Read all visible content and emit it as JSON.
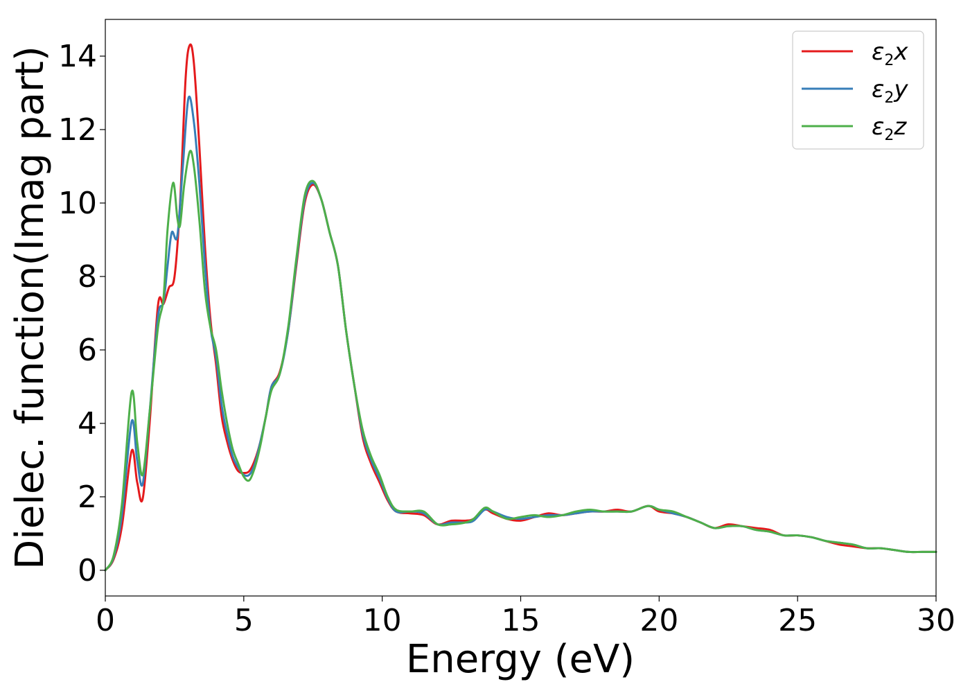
{
  "chart_data": {
    "type": "line",
    "xlabel": "Energy (eV)",
    "ylabel": "Dielec. function(Imag part)",
    "xlim": [
      0,
      30
    ],
    "ylim": [
      -0.7,
      15
    ],
    "xticks": [
      0,
      5,
      10,
      15,
      20,
      25,
      30
    ],
    "xtick_labels": [
      "0",
      "5",
      "10",
      "15",
      "20",
      "25",
      "30"
    ],
    "yticks": [
      0,
      2,
      4,
      6,
      8,
      10,
      12,
      14
    ],
    "ytick_labels": [
      "0",
      "2",
      "4",
      "6",
      "8",
      "10",
      "12",
      "14"
    ],
    "grid": false,
    "legend_position": "top-right",
    "series": [
      {
        "name": "ε2x",
        "legend_base": "ε",
        "legend_sub": "2",
        "legend_tail": "x",
        "color": "#e41a1c",
        "points": [
          [
            0,
            0
          ],
          [
            0.3,
            0.3
          ],
          [
            0.6,
            1.2
          ],
          [
            0.95,
            3.25
          ],
          [
            1.15,
            2.4
          ],
          [
            1.35,
            1.95
          ],
          [
            1.6,
            4.0
          ],
          [
            1.9,
            7.2
          ],
          [
            2.1,
            7.25
          ],
          [
            2.3,
            7.7
          ],
          [
            2.5,
            8.0
          ],
          [
            2.7,
            10.0
          ],
          [
            2.9,
            13.4
          ],
          [
            3.05,
            14.3
          ],
          [
            3.2,
            13.8
          ],
          [
            3.4,
            11.5
          ],
          [
            3.6,
            8.8
          ],
          [
            3.8,
            6.8
          ],
          [
            4.0,
            5.6
          ],
          [
            4.2,
            4.2
          ],
          [
            4.4,
            3.5
          ],
          [
            4.6,
            3.0
          ],
          [
            4.8,
            2.7
          ],
          [
            5.0,
            2.65
          ],
          [
            5.2,
            2.7
          ],
          [
            5.4,
            3.0
          ],
          [
            5.6,
            3.5
          ],
          [
            5.8,
            4.2
          ],
          [
            6.0,
            5.0
          ],
          [
            6.3,
            5.4
          ],
          [
            6.6,
            6.5
          ],
          [
            6.9,
            8.3
          ],
          [
            7.2,
            10.0
          ],
          [
            7.5,
            10.5
          ],
          [
            7.8,
            10.1
          ],
          [
            8.1,
            9.2
          ],
          [
            8.4,
            8.3
          ],
          [
            8.7,
            6.5
          ],
          [
            9.0,
            5.0
          ],
          [
            9.3,
            3.6
          ],
          [
            9.6,
            2.9
          ],
          [
            9.9,
            2.4
          ],
          [
            10.2,
            1.9
          ],
          [
            10.5,
            1.6
          ],
          [
            11.0,
            1.55
          ],
          [
            11.5,
            1.5
          ],
          [
            12.0,
            1.25
          ],
          [
            12.5,
            1.35
          ],
          [
            13.0,
            1.35
          ],
          [
            13.3,
            1.4
          ],
          [
            13.7,
            1.65
          ],
          [
            14.0,
            1.55
          ],
          [
            14.5,
            1.4
          ],
          [
            15.0,
            1.35
          ],
          [
            15.5,
            1.45
          ],
          [
            16.0,
            1.55
          ],
          [
            16.5,
            1.5
          ],
          [
            17.0,
            1.55
          ],
          [
            17.5,
            1.6
          ],
          [
            18.0,
            1.6
          ],
          [
            18.5,
            1.65
          ],
          [
            19.0,
            1.6
          ],
          [
            19.6,
            1.75
          ],
          [
            20.0,
            1.6
          ],
          [
            20.5,
            1.55
          ],
          [
            21.0,
            1.45
          ],
          [
            21.5,
            1.3
          ],
          [
            22.0,
            1.15
          ],
          [
            22.5,
            1.25
          ],
          [
            23.0,
            1.2
          ],
          [
            23.5,
            1.15
          ],
          [
            24.0,
            1.1
          ],
          [
            24.5,
            0.95
          ],
          [
            25.0,
            0.95
          ],
          [
            25.5,
            0.9
          ],
          [
            26.0,
            0.8
          ],
          [
            26.5,
            0.7
          ],
          [
            27.0,
            0.65
          ],
          [
            27.5,
            0.6
          ],
          [
            28.0,
            0.6
          ],
          [
            28.5,
            0.55
          ],
          [
            29.0,
            0.5
          ],
          [
            29.5,
            0.5
          ],
          [
            30.0,
            0.5
          ]
        ]
      },
      {
        "name": "ε2y",
        "legend_base": "ε",
        "legend_sub": "2",
        "legend_tail": "y",
        "color": "#377eb8",
        "points": [
          [
            0,
            0
          ],
          [
            0.3,
            0.35
          ],
          [
            0.6,
            1.5
          ],
          [
            0.95,
            4.05
          ],
          [
            1.15,
            3.0
          ],
          [
            1.35,
            2.35
          ],
          [
            1.6,
            4.3
          ],
          [
            1.9,
            6.9
          ],
          [
            2.1,
            7.3
          ],
          [
            2.25,
            8.3
          ],
          [
            2.4,
            9.2
          ],
          [
            2.6,
            9.1
          ],
          [
            2.8,
            11.0
          ],
          [
            3.0,
            12.85
          ],
          [
            3.2,
            12.2
          ],
          [
            3.4,
            10.5
          ],
          [
            3.6,
            8.3
          ],
          [
            3.8,
            6.6
          ],
          [
            4.0,
            5.8
          ],
          [
            4.2,
            4.5
          ],
          [
            4.4,
            3.7
          ],
          [
            4.6,
            3.1
          ],
          [
            4.8,
            2.8
          ],
          [
            5.0,
            2.6
          ],
          [
            5.2,
            2.6
          ],
          [
            5.4,
            2.9
          ],
          [
            5.6,
            3.5
          ],
          [
            5.8,
            4.2
          ],
          [
            6.0,
            5.0
          ],
          [
            6.3,
            5.35
          ],
          [
            6.6,
            6.5
          ],
          [
            6.9,
            8.4
          ],
          [
            7.2,
            10.1
          ],
          [
            7.5,
            10.55
          ],
          [
            7.8,
            10.1
          ],
          [
            8.1,
            9.2
          ],
          [
            8.4,
            8.3
          ],
          [
            8.7,
            6.5
          ],
          [
            9.0,
            5.0
          ],
          [
            9.3,
            3.7
          ],
          [
            9.6,
            3.0
          ],
          [
            9.9,
            2.5
          ],
          [
            10.2,
            1.95
          ],
          [
            10.5,
            1.6
          ],
          [
            11.0,
            1.6
          ],
          [
            11.5,
            1.55
          ],
          [
            12.0,
            1.25
          ],
          [
            12.5,
            1.3
          ],
          [
            13.0,
            1.3
          ],
          [
            13.3,
            1.35
          ],
          [
            13.7,
            1.65
          ],
          [
            14.0,
            1.6
          ],
          [
            14.5,
            1.45
          ],
          [
            15.0,
            1.4
          ],
          [
            15.5,
            1.45
          ],
          [
            16.0,
            1.5
          ],
          [
            16.5,
            1.5
          ],
          [
            17.0,
            1.55
          ],
          [
            17.5,
            1.6
          ],
          [
            18.0,
            1.6
          ],
          [
            18.5,
            1.6
          ],
          [
            19.0,
            1.6
          ],
          [
            19.6,
            1.75
          ],
          [
            20.0,
            1.65
          ],
          [
            20.5,
            1.55
          ],
          [
            21.0,
            1.45
          ],
          [
            21.5,
            1.3
          ],
          [
            22.0,
            1.15
          ],
          [
            22.5,
            1.2
          ],
          [
            23.0,
            1.2
          ],
          [
            23.5,
            1.1
          ],
          [
            24.0,
            1.05
          ],
          [
            24.5,
            0.95
          ],
          [
            25.0,
            0.95
          ],
          [
            25.5,
            0.9
          ],
          [
            26.0,
            0.8
          ],
          [
            26.5,
            0.75
          ],
          [
            27.0,
            0.7
          ],
          [
            27.5,
            0.6
          ],
          [
            28.0,
            0.6
          ],
          [
            28.5,
            0.55
          ],
          [
            29.0,
            0.5
          ],
          [
            29.5,
            0.5
          ],
          [
            30.0,
            0.5
          ]
        ]
      },
      {
        "name": "ε2z",
        "legend_base": "ε",
        "legend_sub": "2",
        "legend_tail": "z",
        "color": "#4daf4a",
        "points": [
          [
            0,
            0
          ],
          [
            0.3,
            0.4
          ],
          [
            0.6,
            1.8
          ],
          [
            0.95,
            4.85
          ],
          [
            1.15,
            3.5
          ],
          [
            1.35,
            2.6
          ],
          [
            1.6,
            4.3
          ],
          [
            1.9,
            6.6
          ],
          [
            2.1,
            7.4
          ],
          [
            2.25,
            9.3
          ],
          [
            2.45,
            10.55
          ],
          [
            2.6,
            9.6
          ],
          [
            2.7,
            9.4
          ],
          [
            2.85,
            10.5
          ],
          [
            3.05,
            11.4
          ],
          [
            3.2,
            11.0
          ],
          [
            3.4,
            9.5
          ],
          [
            3.6,
            7.6
          ],
          [
            3.8,
            6.6
          ],
          [
            4.0,
            6.0
          ],
          [
            4.2,
            4.9
          ],
          [
            4.4,
            4.0
          ],
          [
            4.6,
            3.3
          ],
          [
            4.8,
            2.9
          ],
          [
            5.0,
            2.55
          ],
          [
            5.2,
            2.45
          ],
          [
            5.4,
            2.8
          ],
          [
            5.6,
            3.4
          ],
          [
            5.8,
            4.2
          ],
          [
            6.0,
            4.9
          ],
          [
            6.3,
            5.35
          ],
          [
            6.6,
            6.6
          ],
          [
            6.9,
            8.5
          ],
          [
            7.2,
            10.2
          ],
          [
            7.5,
            10.6
          ],
          [
            7.8,
            10.1
          ],
          [
            8.1,
            9.2
          ],
          [
            8.4,
            8.3
          ],
          [
            8.7,
            6.5
          ],
          [
            9.0,
            5.0
          ],
          [
            9.3,
            3.8
          ],
          [
            9.6,
            3.1
          ],
          [
            9.9,
            2.6
          ],
          [
            10.2,
            2.0
          ],
          [
            10.5,
            1.65
          ],
          [
            11.0,
            1.6
          ],
          [
            11.5,
            1.6
          ],
          [
            12.0,
            1.25
          ],
          [
            12.5,
            1.25
          ],
          [
            13.0,
            1.3
          ],
          [
            13.3,
            1.4
          ],
          [
            13.7,
            1.7
          ],
          [
            14.0,
            1.6
          ],
          [
            14.5,
            1.4
          ],
          [
            15.0,
            1.45
          ],
          [
            15.5,
            1.5
          ],
          [
            16.0,
            1.45
          ],
          [
            16.5,
            1.5
          ],
          [
            17.0,
            1.6
          ],
          [
            17.5,
            1.65
          ],
          [
            18.0,
            1.6
          ],
          [
            18.5,
            1.6
          ],
          [
            19.0,
            1.6
          ],
          [
            19.6,
            1.75
          ],
          [
            20.0,
            1.65
          ],
          [
            20.5,
            1.6
          ],
          [
            21.0,
            1.45
          ],
          [
            21.5,
            1.3
          ],
          [
            22.0,
            1.15
          ],
          [
            22.5,
            1.2
          ],
          [
            23.0,
            1.2
          ],
          [
            23.5,
            1.1
          ],
          [
            24.0,
            1.05
          ],
          [
            24.5,
            0.95
          ],
          [
            25.0,
            0.95
          ],
          [
            25.5,
            0.9
          ],
          [
            26.0,
            0.8
          ],
          [
            26.5,
            0.75
          ],
          [
            27.0,
            0.7
          ],
          [
            27.5,
            0.6
          ],
          [
            28.0,
            0.6
          ],
          [
            28.5,
            0.55
          ],
          [
            29.0,
            0.5
          ],
          [
            29.5,
            0.5
          ],
          [
            30.0,
            0.5
          ]
        ]
      }
    ]
  }
}
